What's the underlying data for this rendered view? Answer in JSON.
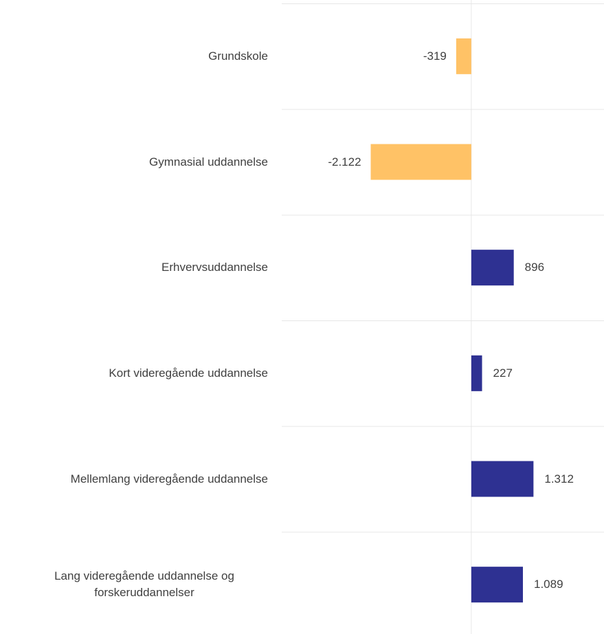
{
  "chart_data": {
    "type": "bar",
    "orientation": "horizontal",
    "categories": [
      "Grundskole",
      "Gymnasial uddannelse",
      "Erhvervsuddannelse",
      "Kort videregående uddannelse",
      "Mellemlang videregående uddannelse",
      "Lang videregående uddannelse og forskeruddannelser"
    ],
    "values": [
      -319,
      -2122,
      896,
      227,
      1312,
      1089
    ],
    "value_labels": [
      "-319",
      "-2.122",
      "896",
      "227",
      "1.312",
      "1.089"
    ],
    "colors": [
      "#ffc266",
      "#ffc266",
      "#2e3192",
      "#2e3192",
      "#2e3192",
      "#2e3192"
    ],
    "xlim": [
      -4000,
      2800
    ],
    "grid": true
  }
}
